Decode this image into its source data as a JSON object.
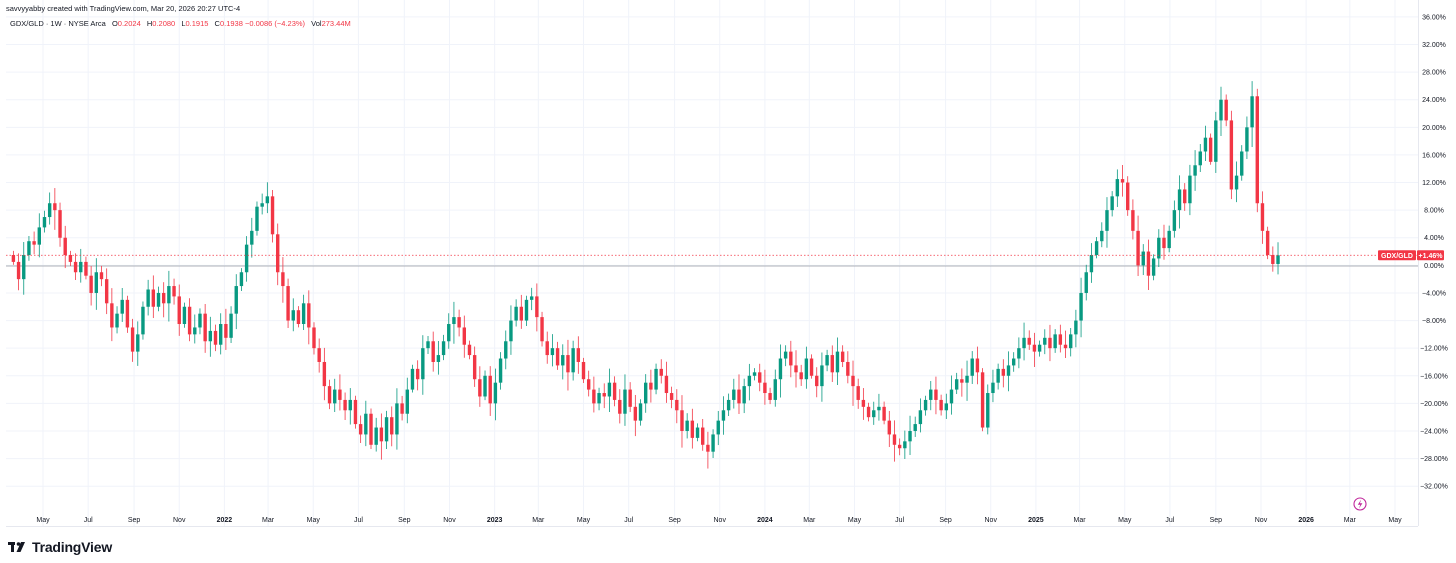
{
  "caption": "savvyyabby created with TradingView.com, Mar 20, 2026 20:27 UTC-4",
  "legend": {
    "symbol": "GDX/GLD · 1W · NYSE Arca",
    "open_label": "O",
    "open": "0.2024",
    "high_label": "H",
    "high": "0.2080",
    "low_label": "L",
    "low": "0.1915",
    "close_label": "C",
    "close": "0.1938",
    "change": "−0.0086 (−4.23%)",
    "vol_label": "Vol",
    "vol": "273.44M"
  },
  "brand": {
    "name": "TradingView",
    "logo_icon": "tradingview-logo-icon"
  },
  "price_tag": {
    "symbol": "GDX/GLD",
    "value": "+1.46%"
  },
  "colors": {
    "up": "#089981",
    "down": "#f23645",
    "grid": "#f0f3fa",
    "axis_text": "#131722"
  },
  "chart_data": {
    "type": "candlestick",
    "interval": "1W",
    "y_unit": "percent",
    "ylim": [
      -34,
      37
    ],
    "y_ticks": [
      36,
      32,
      28,
      24,
      20,
      16,
      12,
      8,
      4,
      0,
      -4,
      -8,
      -12,
      -16,
      -20,
      -24,
      -28,
      -32
    ],
    "y_tick_labels": [
      "36.00%",
      "32.00%",
      "28.00%",
      "24.00%",
      "20.00%",
      "16.00%",
      "12.00%",
      "8.00%",
      "4.00%",
      "0.00%",
      "−4.00%",
      "−8.00%",
      "−12.00%",
      "−16.00%",
      "−20.00%",
      "−24.00%",
      "−28.00%",
      "−32.00%"
    ],
    "x_start": "2021-03-22",
    "x_ticks": [
      {
        "date": "2021-05-01",
        "label": "May"
      },
      {
        "date": "2021-07-01",
        "label": "Jul"
      },
      {
        "date": "2021-09-01",
        "label": "Sep"
      },
      {
        "date": "2021-11-01",
        "label": "Nov"
      },
      {
        "date": "2022-01-01",
        "label": "2022"
      },
      {
        "date": "2022-03-01",
        "label": "Mar"
      },
      {
        "date": "2022-05-01",
        "label": "May"
      },
      {
        "date": "2022-07-01",
        "label": "Jul"
      },
      {
        "date": "2022-09-01",
        "label": "Sep"
      },
      {
        "date": "2022-11-01",
        "label": "Nov"
      },
      {
        "date": "2023-01-01",
        "label": "2023"
      },
      {
        "date": "2023-03-01",
        "label": "Mar"
      },
      {
        "date": "2023-05-01",
        "label": "May"
      },
      {
        "date": "2023-07-01",
        "label": "Jul"
      },
      {
        "date": "2023-09-01",
        "label": "Sep"
      },
      {
        "date": "2023-11-01",
        "label": "Nov"
      },
      {
        "date": "2024-01-01",
        "label": "2024"
      },
      {
        "date": "2024-03-01",
        "label": "Mar"
      },
      {
        "date": "2024-05-01",
        "label": "May"
      },
      {
        "date": "2024-07-01",
        "label": "Jul"
      },
      {
        "date": "2024-09-01",
        "label": "Sep"
      },
      {
        "date": "2024-11-01",
        "label": "Nov"
      },
      {
        "date": "2025-01-01",
        "label": "2025"
      },
      {
        "date": "2025-03-01",
        "label": "Mar"
      },
      {
        "date": "2025-05-01",
        "label": "May"
      },
      {
        "date": "2025-07-01",
        "label": "Jul"
      },
      {
        "date": "2025-09-01",
        "label": "Sep"
      },
      {
        "date": "2025-11-01",
        "label": "Nov"
      },
      {
        "date": "2026-01-01",
        "label": "2026"
      },
      {
        "date": "2026-03-01",
        "label": "Mar"
      },
      {
        "date": "2026-05-01",
        "label": "May"
      }
    ],
    "reference_line": 0,
    "last_value": 1.46,
    "closes": [
      0.5,
      -2.0,
      1.5,
      3.5,
      3.0,
      5.5,
      7.0,
      9.0,
      8.0,
      4.0,
      1.5,
      0.5,
      -1.0,
      0.5,
      -1.5,
      -4.0,
      -1.0,
      -2.0,
      -5.5,
      -9.0,
      -7.0,
      -5.0,
      -9.0,
      -12.5,
      -10.0,
      -6.0,
      -3.5,
      -6.0,
      -4.0,
      -5.5,
      -3.0,
      -4.5,
      -8.5,
      -6.0,
      -10.0,
      -9.0,
      -7.0,
      -11.0,
      -9.5,
      -11.5,
      -8.5,
      -10.5,
      -7.0,
      -3.0,
      -1.0,
      3.0,
      5.0,
      8.5,
      9.0,
      10.0,
      4.5,
      -1.0,
      -3.0,
      -8.0,
      -6.5,
      -8.5,
      -5.5,
      -9.0,
      -12.0,
      -14.0,
      -17.5,
      -20.0,
      -18.0,
      -19.5,
      -21.0,
      -19.5,
      -23.0,
      -24.5,
      -21.5,
      -26.0,
      -23.5,
      -25.5,
      -22.0,
      -24.5,
      -20.0,
      -21.5,
      -18.0,
      -15.0,
      -16.5,
      -12.0,
      -11.0,
      -14.0,
      -13.0,
      -11.0,
      -8.5,
      -7.5,
      -9.0,
      -11.5,
      -13.0,
      -16.5,
      -19.0,
      -16.0,
      -20.0,
      -17.0,
      -13.5,
      -11.0,
      -8.0,
      -6.0,
      -8.0,
      -5.0,
      -4.5,
      -7.5,
      -11.0,
      -13.0,
      -12.0,
      -14.5,
      -13.0,
      -15.5,
      -12.0,
      -14.0,
      -16.5,
      -18.0,
      -20.0,
      -18.5,
      -19.0,
      -17.0,
      -19.5,
      -21.5,
      -18.0,
      -20.5,
      -22.5,
      -20.0,
      -17.0,
      -18.0,
      -15.0,
      -16.0,
      -18.5,
      -19.5,
      -21.0,
      -24.0,
      -22.5,
      -25.0,
      -23.5,
      -26.0,
      -27.0,
      -24.5,
      -22.5,
      -21.0,
      -19.5,
      -18.0,
      -20.0,
      -17.5,
      -16.0,
      -15.5,
      -17.0,
      -18.5,
      -19.5,
      -16.5,
      -13.5,
      -12.5,
      -14.5,
      -15.5,
      -16.5,
      -13.5,
      -16.0,
      -17.5,
      -14.5,
      -13.0,
      -15.5,
      -12.5,
      -14.0,
      -16.0,
      -17.5,
      -19.5,
      -20.5,
      -22.0,
      -21.0,
      -20.5,
      -22.5,
      -24.5,
      -26.0,
      -26.5,
      -25.5,
      -24.0,
      -23.0,
      -21.0,
      -19.5,
      -18.0,
      -19.5,
      -21.0,
      -20.0,
      -18.0,
      -16.5,
      -17.0,
      -16.0,
      -13.5,
      -15.5,
      -23.5,
      -18.5,
      -17.0,
      -15.0,
      -16.0,
      -14.5,
      -13.5,
      -12.0,
      -10.5,
      -11.5,
      -12.5,
      -11.5,
      -10.5,
      -12.0,
      -10.0,
      -11.5,
      -12.0,
      -10.0,
      -8.0,
      -4.0,
      -1.0,
      1.5,
      3.5,
      5.0,
      8.0,
      10.0,
      12.5,
      12.0,
      8.0,
      5.0,
      0.0,
      2.0,
      -1.5,
      1.0,
      4.0,
      2.5,
      5.0,
      8.0,
      11.0,
      9.0,
      13.0,
      14.5,
      16.5,
      18.5,
      15.0,
      21.0,
      24.0,
      21.0,
      11.0,
      13.0,
      16.5,
      20.0,
      24.5,
      9.0,
      5.0,
      1.5,
      0.2,
      1.46
    ]
  }
}
